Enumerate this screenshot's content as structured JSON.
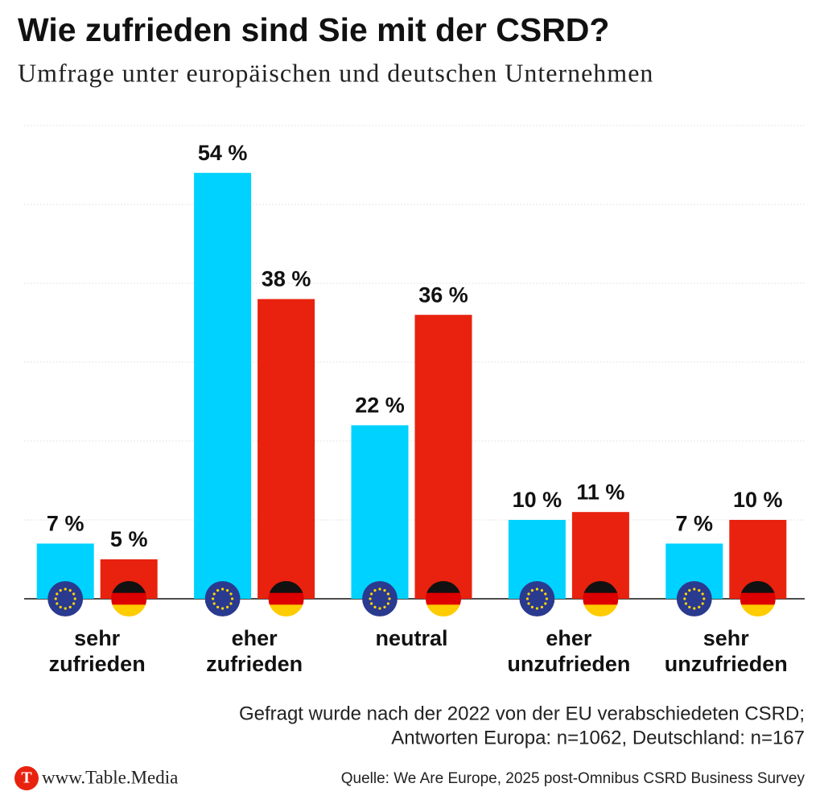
{
  "chart_data": {
    "type": "bar",
    "title": "Wie zufrieden sind Sie mit der CSRD?",
    "subtitle": "Umfrage unter europäischen und deutschen Unternehmen",
    "categories": [
      "sehr zufrieden",
      "eher zufrieden",
      "neutral",
      "eher unzufrieden",
      "sehr unzufrieden"
    ],
    "series": [
      {
        "color": "#00d2ff",
        "values": [
          7,
          54,
          22,
          10,
          7
        ],
        "value_labels": [
          "7 %",
          "54 %",
          "22 %",
          "10 %",
          "7 %"
        ]
      },
      {
        "color": "#e8220e",
        "values": [
          5,
          38,
          36,
          11,
          10
        ],
        "value_labels": [
          "5 %",
          "38 %",
          "36 %",
          "11 %",
          "10 %"
        ]
      }
    ],
    "ylim": [
      0,
      60
    ],
    "yticks": [
      0,
      10,
      20,
      30,
      40,
      50,
      60
    ],
    "grid": true,
    "note": [
      "Gefragt wurde nach der 2022 von der EU verabschiedeten CSRD;",
      "Antworten Europa: n=1062, Deutschland: n=167"
    ],
    "source": "Quelle: We Are Europe, 2025 post-Omnibus CSRD Business Survey",
    "logo": "T",
    "brand": "www.Table.Media"
  }
}
